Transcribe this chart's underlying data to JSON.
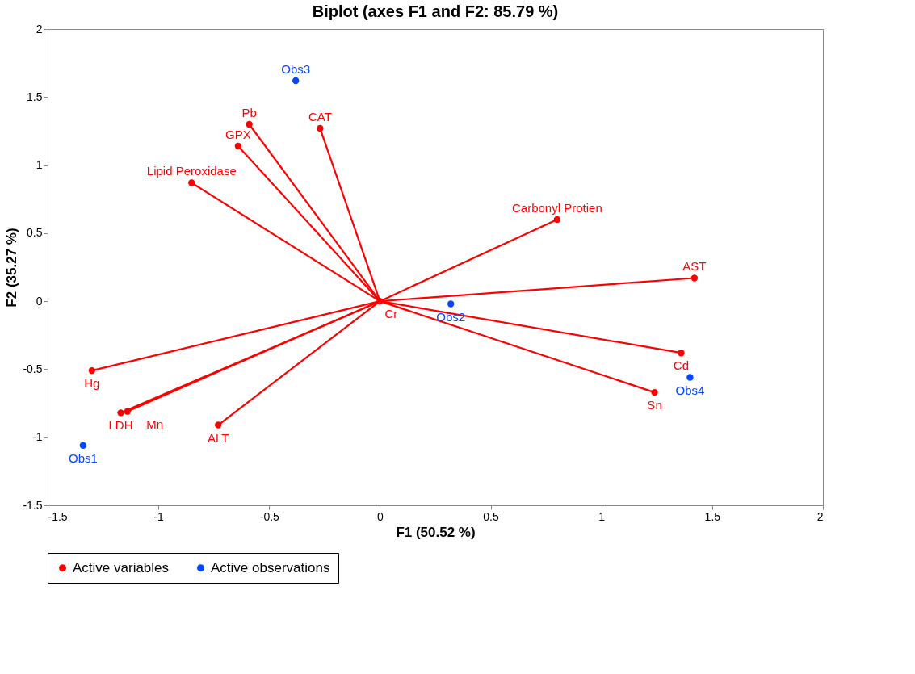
{
  "chart_data": {
    "type": "scatter",
    "title": "Biplot (axes F1 and F2: 85.79 %)",
    "xlabel": "F1 (50.52 %)",
    "ylabel": "F2 (35.27 %)",
    "xlim": [
      -1.5,
      2
    ],
    "xticks": [
      -1.5,
      -1,
      -0.5,
      0,
      0.5,
      1,
      1.5,
      2
    ],
    "ylim": [
      -1.5,
      2
    ],
    "yticks": [
      -1.5,
      -1,
      -0.5,
      0,
      0.5,
      1,
      1.5,
      2
    ],
    "line_style": "solid",
    "grid": false,
    "legend": "bottom",
    "marker": "circle",
    "series": [
      {
        "name": "Active variables",
        "color": "#ff0000",
        "x": [
          -0.27,
          -0.59,
          -0.64,
          -0.85,
          0.8,
          1.42,
          1.36,
          1.24,
          -0.73,
          -1.3,
          -1.17,
          -1.14,
          0
        ],
        "values": [
          1.27,
          1.3,
          1.14,
          0.87,
          0.6,
          0.17,
          -0.38,
          -0.67,
          -0.91,
          -0.51,
          -0.82,
          -0.81,
          0
        ]
      },
      {
        "name": "Active observations",
        "color": "#0047ff",
        "x": [
          -0.38,
          0.32,
          1.4,
          -1.34
        ],
        "values": [
          1.62,
          -0.02,
          -0.56,
          -1.06
        ]
      },
      {
        "color": "#ff0000",
        "type": "line",
        "marker": "none",
        "x": [
          0,
          -0.27
        ],
        "values": [
          0,
          1.27
        ]
      },
      {
        "color": "#ff0000",
        "type": "line",
        "marker": "none",
        "x": [
          0,
          -0.59
        ],
        "values": [
          0,
          1.3
        ]
      },
      {
        "color": "#ff0000",
        "type": "line",
        "marker": "none",
        "x": [
          0,
          -0.64
        ],
        "values": [
          0,
          1.14
        ]
      },
      {
        "color": "#ff0000",
        "type": "line",
        "marker": "none",
        "x": [
          0,
          -0.85
        ],
        "values": [
          0,
          0.87
        ]
      },
      {
        "color": "#ff0000",
        "type": "line",
        "marker": "none",
        "x": [
          0,
          0.8
        ],
        "values": [
          0,
          0.6
        ]
      },
      {
        "color": "#ff0000",
        "type": "line",
        "marker": "none",
        "x": [
          0,
          1.42
        ],
        "values": [
          0,
          0.17
        ]
      },
      {
        "color": "#ff0000",
        "type": "line",
        "marker": "none",
        "x": [
          0,
          1.36
        ],
        "values": [
          0,
          -0.38
        ]
      },
      {
        "color": "#ff0000",
        "type": "line",
        "marker": "none",
        "x": [
          0,
          1.24
        ],
        "values": [
          0,
          -0.67
        ]
      },
      {
        "color": "#ff0000",
        "type": "line",
        "marker": "none",
        "x": [
          0,
          -0.73
        ],
        "values": [
          0,
          -0.91
        ]
      },
      {
        "color": "#ff0000",
        "type": "line",
        "marker": "none",
        "x": [
          0,
          -1.3
        ],
        "values": [
          0,
          -0.51
        ]
      },
      {
        "color": "#ff0000",
        "type": "line",
        "marker": "none",
        "x": [
          0,
          -1.17
        ],
        "values": [
          0,
          -0.82
        ]
      },
      {
        "color": "#ff0000",
        "type": "line",
        "marker": "none",
        "x": [
          0,
          -1.14
        ],
        "values": [
          0,
          -0.81
        ]
      }
    ],
    "annotations": [
      {
        "text": "CAT",
        "x": -0.27,
        "y": 1.27
      },
      {
        "text": "Pb",
        "x": -0.59,
        "y": 1.3
      },
      {
        "text": "GPX",
        "x": -0.64,
        "y": 1.14
      },
      {
        "text": "Lipid Peroxidase",
        "x": -0.85,
        "y": 0.87
      },
      {
        "text": "Carbonyl Protien",
        "x": 0.8,
        "y": 0.6
      },
      {
        "text": "AST",
        "x": 1.42,
        "y": 0.17
      },
      {
        "text": "Cd",
        "x": 1.36,
        "y": -0.38
      },
      {
        "text": "Sn",
        "x": 1.24,
        "y": -0.67
      },
      {
        "text": "ALT",
        "x": -0.73,
        "y": -0.91
      },
      {
        "text": "Hg",
        "x": -1.3,
        "y": -0.51
      },
      {
        "text": "LDH",
        "x": -1.17,
        "y": -0.82
      },
      {
        "text": "Mn",
        "x": -1.14,
        "y": -0.81
      },
      {
        "text": "Cr",
        "x": 0,
        "y": 0
      },
      {
        "text": "Obs3",
        "x": -0.38,
        "y": 1.62
      },
      {
        "text": "Obs2",
        "x": 0.32,
        "y": -0.02
      },
      {
        "text": "Obs4",
        "x": 1.4,
        "y": -0.56
      },
      {
        "text": "Obs1",
        "x": -1.34,
        "y": -1.06
      }
    ]
  }
}
